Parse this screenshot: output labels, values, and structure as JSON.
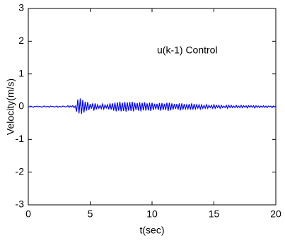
{
  "chart_data": {
    "type": "line",
    "xlabel": "t(sec)",
    "ylabel": "Velocity(m/s)",
    "annotation": "u(k-1) Control",
    "xlim": [
      0,
      20
    ],
    "ylim": [
      -3,
      3
    ],
    "xticks": [
      0,
      5,
      10,
      15,
      20
    ],
    "yticks": [
      -3,
      -2,
      -1,
      0,
      1,
      2,
      3
    ],
    "grid": false,
    "x": [
      0,
      0.1,
      0.2,
      0.3,
      0.4,
      0.5,
      0.6,
      0.7,
      0.8,
      0.9,
      1,
      1.1,
      1.2,
      1.3,
      1.4,
      1.5,
      1.6,
      1.7,
      1.8,
      1.9,
      2,
      2.1,
      2.2,
      2.3,
      2.4,
      2.5,
      2.6,
      2.7,
      2.8,
      2.9,
      3,
      3.1,
      3.2,
      3.3,
      3.4,
      3.5,
      3.6,
      3.7,
      3.8,
      3.9,
      4,
      4.1,
      4.2,
      4.3,
      4.4,
      4.5,
      4.6,
      4.7,
      4.8,
      4.9,
      5,
      5.1,
      5.2,
      5.3,
      5.4,
      5.5,
      5.6,
      5.7,
      5.8,
      5.9,
      6,
      6.1,
      6.2,
      6.3,
      6.4,
      6.5,
      6.6,
      6.7,
      6.8,
      6.9,
      7,
      7.1,
      7.2,
      7.3,
      7.4,
      7.5,
      7.6,
      7.7,
      7.8,
      7.9,
      8,
      8.1,
      8.2,
      8.3,
      8.4,
      8.5,
      8.6,
      8.7,
      8.8,
      8.9,
      9,
      9.1,
      9.2,
      9.3,
      9.4,
      9.5,
      9.6,
      9.7,
      9.8,
      9.9,
      10,
      10.1,
      10.2,
      10.3,
      10.4,
      10.5,
      10.6,
      10.7,
      10.8,
      10.9,
      11,
      11.1,
      11.2,
      11.3,
      11.4,
      11.5,
      11.6,
      11.7,
      11.8,
      11.9,
      12,
      12.1,
      12.2,
      12.3,
      12.4,
      12.5,
      12.6,
      12.7,
      12.8,
      12.9,
      13,
      13.1,
      13.2,
      13.3,
      13.4,
      13.5,
      13.6,
      13.7,
      13.8,
      13.9,
      14,
      14.1,
      14.2,
      14.3,
      14.4,
      14.5,
      14.6,
      14.7,
      14.8,
      14.9,
      15,
      15.1,
      15.2,
      15.3,
      15.4,
      15.5,
      15.6,
      15.7,
      15.8,
      15.9,
      16,
      16.1,
      16.2,
      16.3,
      16.4,
      16.5,
      16.6,
      16.7,
      16.8,
      16.9,
      17,
      17.1,
      17.2,
      17.3,
      17.4,
      17.5,
      17.6,
      17.7,
      17.8,
      17.9,
      18,
      18.1,
      18.2,
      18.3,
      18.4,
      18.5,
      18.6,
      18.7,
      18.8,
      18.9,
      19,
      19.1,
      19.2,
      19.3,
      19.4,
      19.5,
      19.6,
      19.7,
      19.8,
      19.9,
      20
    ],
    "series": [
      {
        "color": "#0000ff",
        "values": [
          0.01,
          -0.01,
          0.02,
          0,
          -0.02,
          0.01,
          0,
          0.02,
          -0.01,
          0.01,
          0,
          -0.02,
          0.01,
          0.02,
          -0.01,
          0,
          0.01,
          -0.02,
          0.02,
          0,
          0.01,
          -0.01,
          0,
          0.02,
          -0.02,
          0.01,
          0,
          -0.01,
          0.02,
          0.01,
          -0.01,
          0,
          0.03,
          -0.02,
          0.02,
          -0.01,
          0.03,
          -0.03,
          0.02,
          -0.15,
          0.22,
          -0.2,
          0.25,
          -0.22,
          0.2,
          -0.18,
          0.15,
          -0.12,
          0.14,
          -0.1,
          0.08,
          -0.06,
          0.1,
          -0.12,
          0.1,
          -0.08,
          0.06,
          -0.05,
          0.04,
          -0.06,
          0.08,
          -0.07,
          0.05,
          -0.04,
          0.06,
          -0.08,
          0.1,
          -0.09,
          0.1,
          -0.12,
          0.12,
          -0.14,
          0.13,
          -0.12,
          0.15,
          -0.14,
          0.12,
          -0.13,
          0.14,
          -0.15,
          0.13,
          -0.12,
          0.14,
          -0.13,
          0.15,
          -0.14,
          0.12,
          -0.1,
          0.11,
          -0.12,
          0.13,
          -0.14,
          0.12,
          -0.11,
          0.13,
          -0.12,
          0.1,
          -0.11,
          0.12,
          -0.13,
          0.12,
          -0.1,
          0.09,
          -0.08,
          0.09,
          -0.1,
          0.11,
          -0.12,
          0.11,
          -0.1,
          0.09,
          -0.1,
          0.12,
          -0.13,
          0.12,
          -0.11,
          0.1,
          -0.09,
          0.08,
          -0.07,
          0.08,
          -0.09,
          0.1,
          -0.11,
          0.1,
          -0.09,
          0.08,
          -0.07,
          0.06,
          -0.07,
          0.08,
          -0.09,
          0.1,
          -0.09,
          0.08,
          -0.07,
          0.06,
          -0.05,
          0.06,
          -0.07,
          0.06,
          -0.05,
          0.04,
          -0.05,
          0.06,
          -0.05,
          0.04,
          -0.03,
          0.04,
          -0.05,
          0.06,
          -0.05,
          0.04,
          -0.03,
          0.04,
          -0.05,
          0.04,
          -0.03,
          0.02,
          -0.03,
          0.04,
          -0.05,
          0.04,
          -0.03,
          0.04,
          -0.03,
          0.02,
          -0.03,
          0.04,
          -0.03,
          0.02,
          -0.03,
          0.04,
          -0.03,
          0.03,
          -0.02,
          0.03,
          -0.04,
          0.03,
          -0.02,
          0.03,
          -0.02,
          0.03,
          -0.04,
          0.03,
          -0.02,
          0.02,
          -0.03,
          0.02,
          -0.02,
          0.03,
          -0.02,
          0.02,
          -0.03,
          0.02,
          -0.01,
          0.02,
          -0.03,
          0.02,
          -0.01,
          0.02
        ]
      }
    ]
  }
}
